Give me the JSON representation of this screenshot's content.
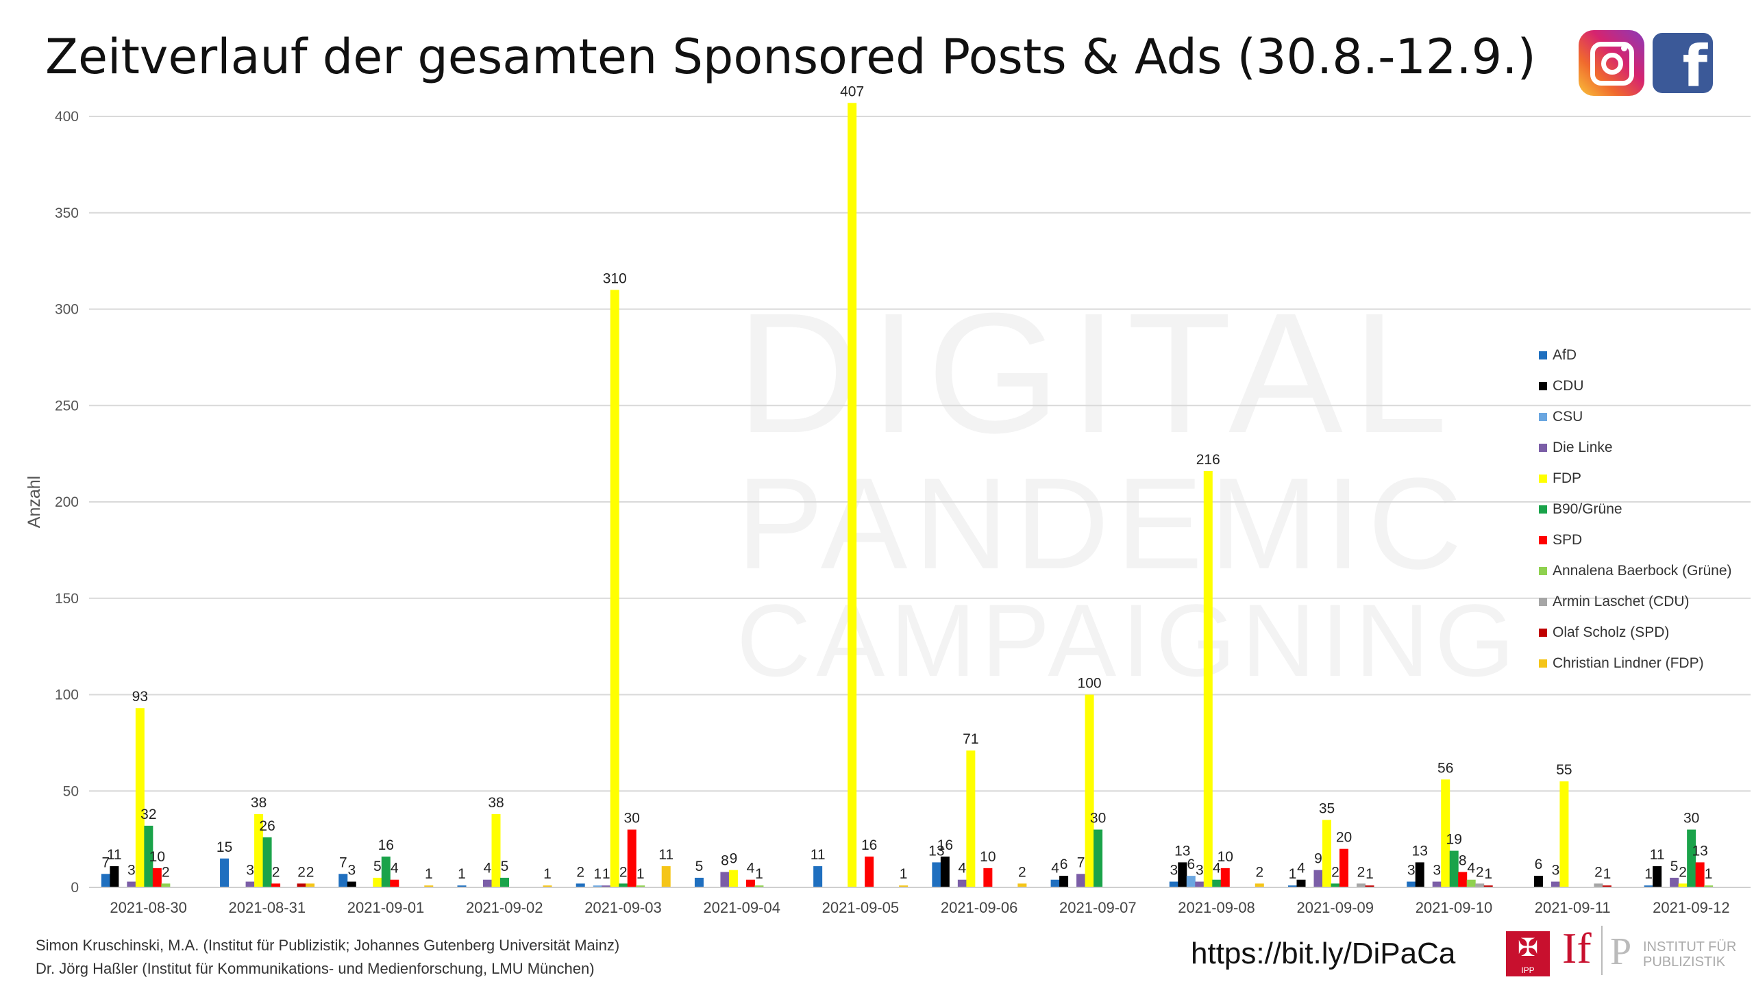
{
  "title": "Zeitverlauf der gesamten Sponsored Posts & Ads (30.8.-12.9.)",
  "watermark": [
    "DIGITAL",
    "PANDEMIC",
    "CAMPAIGNING"
  ],
  "icons": {
    "instagram": "instagram-icon",
    "facebook": "facebook-icon"
  },
  "footer": {
    "author1": "Simon Kruschinski, M.A. (Institut für Publizistik; Johannes Gutenberg Universität Mainz)",
    "author2": "Dr. Jörg Haßler (Institut für Kommunikations- und Medienforschung, LMU München)",
    "url": "https://bit.ly/DiPaCa",
    "logo_ipp": "IPP",
    "logo_if": "If",
    "logo_p": "P",
    "logo_text_1": "INSTITUT FÜR",
    "logo_text_2": "PUBLIZISTIK"
  },
  "chart_data": {
    "type": "bar",
    "ylabel": "Anzahl",
    "xlabel": "",
    "ylim": [
      0,
      400
    ],
    "yticks": [
      0,
      50,
      100,
      150,
      200,
      250,
      300,
      350,
      400
    ],
    "grid": true,
    "legend_position": "right",
    "categories": [
      "2021-08-30",
      "2021-08-31",
      "2021-09-01",
      "2021-09-02",
      "2021-09-03",
      "2021-09-04",
      "2021-09-05",
      "2021-09-06",
      "2021-09-07",
      "2021-09-08",
      "2021-09-09",
      "2021-09-10",
      "2021-09-11",
      "2021-09-12"
    ],
    "series": [
      {
        "name": "AfD",
        "color": "#1f6fbf",
        "values": [
          7,
          15,
          7,
          1,
          2,
          5,
          11,
          13,
          4,
          3,
          1,
          3,
          null,
          1
        ]
      },
      {
        "name": "CDU",
        "color": "#000000",
        "values": [
          11,
          null,
          3,
          null,
          null,
          null,
          null,
          16,
          6,
          13,
          4,
          13,
          6,
          11
        ]
      },
      {
        "name": "CSU",
        "color": "#6aa6e0",
        "values": [
          null,
          null,
          null,
          null,
          1,
          null,
          null,
          null,
          null,
          6,
          null,
          null,
          null,
          null
        ]
      },
      {
        "name": "Die Linke",
        "color": "#7b5ea7",
        "values": [
          3,
          3,
          null,
          4,
          1,
          8,
          null,
          4,
          7,
          3,
          9,
          3,
          3,
          5
        ]
      },
      {
        "name": "FDP",
        "color": "#ffff00",
        "values": [
          93,
          38,
          5,
          38,
          310,
          9,
          407,
          71,
          100,
          216,
          35,
          56,
          55,
          2
        ]
      },
      {
        "name": "B90/Grüne",
        "color": "#1aa34a",
        "values": [
          32,
          26,
          16,
          5,
          2,
          null,
          null,
          null,
          30,
          4,
          2,
          19,
          null,
          30
        ]
      },
      {
        "name": "SPD",
        "color": "#ff0000",
        "values": [
          10,
          2,
          4,
          null,
          30,
          4,
          16,
          10,
          null,
          10,
          20,
          8,
          null,
          13
        ]
      },
      {
        "name": "Annalena Baerbock (Grüne)",
        "color": "#8fd14f",
        "values": [
          2,
          null,
          null,
          null,
          1,
          1,
          null,
          null,
          null,
          null,
          null,
          4,
          null,
          1
        ]
      },
      {
        "name": "Armin Laschet (CDU)",
        "color": "#a6a6a6",
        "values": [
          null,
          null,
          null,
          null,
          null,
          null,
          null,
          null,
          null,
          null,
          2,
          2,
          2,
          null
        ]
      },
      {
        "name": "Olaf Scholz (SPD)",
        "color": "#c00000",
        "values": [
          null,
          2,
          null,
          null,
          null,
          null,
          null,
          null,
          null,
          null,
          1,
          1,
          1,
          null
        ]
      },
      {
        "name": "Christian Lindner (FDP)",
        "color": "#f5c518",
        "values": [
          null,
          2,
          1,
          1,
          11,
          null,
          1,
          2,
          null,
          2,
          null,
          null,
          null,
          null
        ]
      }
    ]
  }
}
